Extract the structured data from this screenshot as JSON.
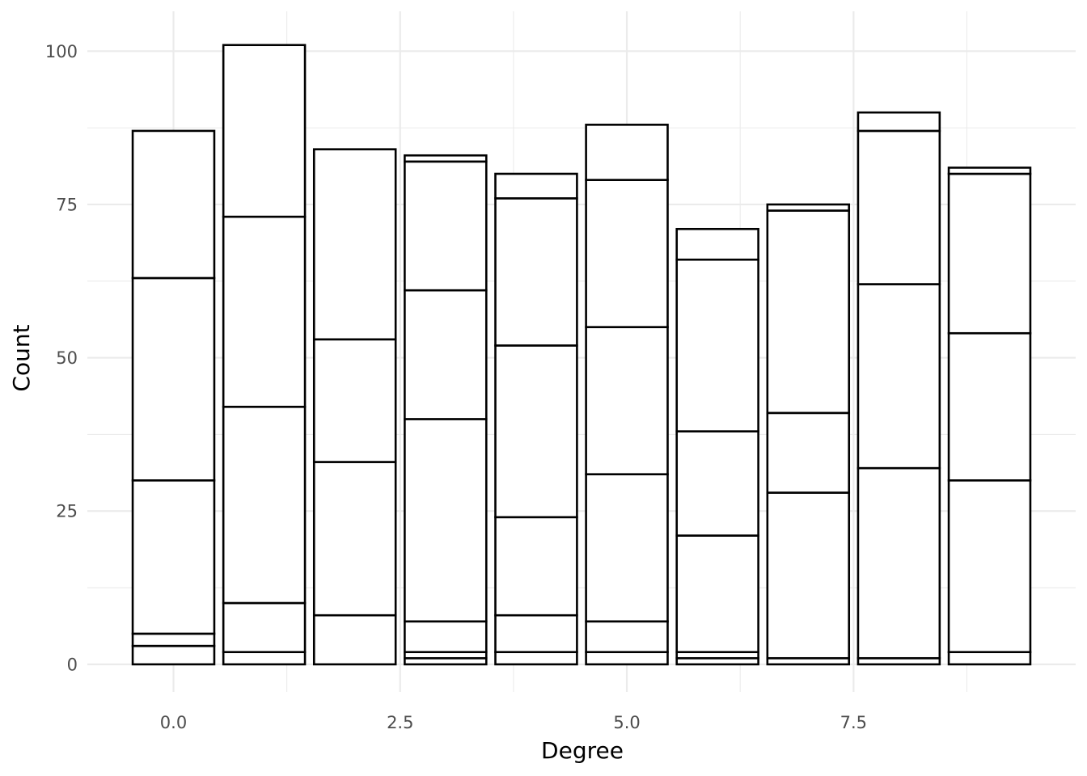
{
  "chart_data": {
    "type": "bar",
    "stacked": true,
    "xlabel": "Degree",
    "ylabel": "Count",
    "xlim": [
      -0.95,
      9.95
    ],
    "ylim": [
      -4.5,
      106.5
    ],
    "x_ticks": [
      {
        "value": 0,
        "label": "0.0"
      },
      {
        "value": 2.5,
        "label": "2.5"
      },
      {
        "value": 5,
        "label": "5.0"
      },
      {
        "value": 7.5,
        "label": "7.5"
      }
    ],
    "y_ticks": [
      {
        "value": 0,
        "label": "0"
      },
      {
        "value": 25,
        "label": "25"
      },
      {
        "value": 50,
        "label": "50"
      },
      {
        "value": 75,
        "label": "75"
      },
      {
        "value": 100,
        "label": "100"
      }
    ],
    "x_minor_ticks": [
      1.25,
      3.75,
      6.25,
      8.75
    ],
    "y_minor_ticks": [
      12.5,
      37.5,
      62.5,
      87.5
    ],
    "bar_width": 0.9,
    "grid": true,
    "fill_color": "#ffffff",
    "outline_color": "#000000",
    "bars": [
      {
        "x": 0,
        "total": 87,
        "boundaries": [
          3,
          5,
          30,
          63,
          87
        ]
      },
      {
        "x": 1,
        "total": 101,
        "boundaries": [
          2,
          10,
          42,
          73,
          101
        ]
      },
      {
        "x": 2,
        "total": 84,
        "boundaries": [
          8,
          33,
          53,
          84
        ]
      },
      {
        "x": 3,
        "total": 83,
        "boundaries": [
          1,
          2,
          7,
          40,
          61,
          82,
          83
        ]
      },
      {
        "x": 4,
        "total": 80,
        "boundaries": [
          2,
          8,
          24,
          52,
          76,
          80
        ]
      },
      {
        "x": 5,
        "total": 88,
        "boundaries": [
          2,
          7,
          31,
          55,
          79,
          88
        ]
      },
      {
        "x": 6,
        "total": 71,
        "boundaries": [
          1,
          2,
          21,
          38,
          66,
          71
        ]
      },
      {
        "x": 7,
        "total": 75,
        "boundaries": [
          1,
          28,
          41,
          74,
          75
        ]
      },
      {
        "x": 8,
        "total": 90,
        "boundaries": [
          1,
          32,
          62,
          87,
          90
        ]
      },
      {
        "x": 9,
        "total": 81,
        "boundaries": [
          2,
          30,
          54,
          80,
          81
        ]
      }
    ]
  }
}
